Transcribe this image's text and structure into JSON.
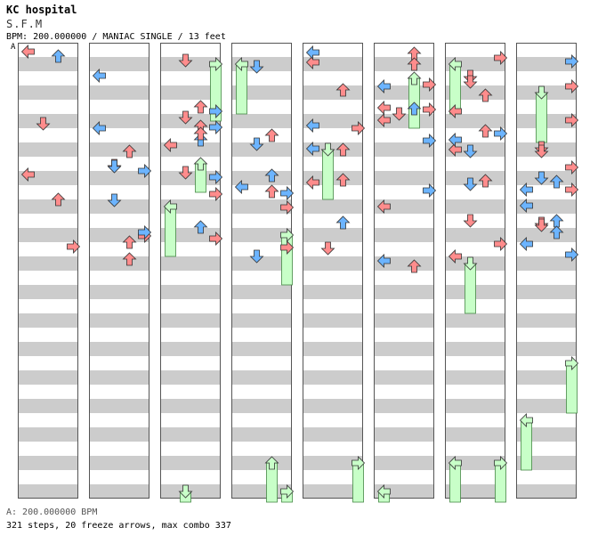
{
  "song": {
    "title": "KC hospital",
    "artist": "S.F.M",
    "info": "BPM: 200.000000 / MANIAC SINGLE / 13 feet",
    "bpm_marker": "A"
  },
  "footer": {
    "bpm_line": "A: 200.000000 BPM",
    "stats": "321 steps, 20 freeze arrows, max combo 337"
  },
  "colors": {
    "quarter_note": "#ff8c8c",
    "eighth_note": "#6cb4ff",
    "sixteenth_note": "#ff9cff",
    "freeze": "#c8ffc8",
    "stripe": "#cccccc"
  },
  "chart": {
    "columns": 8,
    "measures_per_column": 8,
    "lanes": [
      "left",
      "down",
      "up",
      "right"
    ],
    "notes": [
      [
        1,
        2,
        3,
        "8"
      ],
      [
        3,
        2,
        2,
        "8"
      ],
      [
        3,
        2,
        0,
        "8"
      ],
      [
        2,
        1,
        3,
        "8"
      ],
      [
        2,
        1,
        2,
        "4"
      ],
      [
        1,
        2,
        1,
        "8"
      ],
      [
        5,
        1,
        3,
        "8"
      ],
      [
        5,
        1,
        0,
        "4"
      ],
      [
        5,
        0,
        2,
        "4"
      ],
      [
        6,
        0,
        3,
        "4"
      ],
      [
        6,
        0,
        1,
        "4"
      ],
      [
        6,
        0,
        2,
        "4"
      ],
      [
        7,
        2,
        1,
        "8"
      ],
      [
        7,
        2,
        0,
        "8"
      ],
      [
        7,
        3,
        0,
        "8"
      ],
      [
        7,
        3,
        1,
        "4"
      ],
      [
        7,
        3,
        2,
        "8"
      ],
      [
        7,
        2,
        3,
        "4"
      ],
      [
        0,
        0,
        0,
        "4"
      ],
      [
        0,
        0,
        2,
        "8"
      ],
      [
        0,
        2,
        0,
        "4"
      ],
      [
        1,
        3,
        3,
        "4"
      ],
      [
        1,
        2,
        1,
        "4"
      ],
      [
        1,
        3,
        2,
        "4"
      ],
      [
        1,
        1,
        0,
        "8"
      ],
      [
        1,
        0,
        0,
        "8"
      ],
      [
        2,
        1,
        2,
        "4"
      ],
      [
        2,
        1,
        0,
        "4"
      ],
      [
        2,
        1,
        1,
        "4"
      ],
      [
        2,
        1,
        2,
        "8"
      ],
      [
        2,
        2,
        1,
        "4"
      ],
      [
        2,
        2,
        3,
        "8"
      ],
      [
        2,
        3,
        3,
        "4"
      ],
      [
        3,
        2,
        3,
        "8"
      ],
      [
        3,
        3,
        3,
        "4"
      ],
      [
        3,
        2,
        2,
        "4"
      ],
      [
        3,
        3,
        1,
        "8"
      ],
      [
        4,
        0,
        2,
        "4"
      ],
      [
        4,
        0,
        0,
        "4"
      ],
      [
        4,
        1,
        0,
        "8"
      ],
      [
        4,
        1,
        3,
        "4"
      ],
      [
        4,
        1,
        0,
        "8"
      ],
      [
        4,
        2,
        2,
        "4"
      ],
      [
        5,
        0,
        3,
        "4"
      ],
      [
        5,
        1,
        1,
        "4"
      ],
      [
        5,
        0,
        0,
        "8"
      ],
      [
        5,
        1,
        2,
        "8"
      ],
      [
        5,
        1,
        3,
        "4"
      ],
      [
        5,
        2,
        0,
        "4"
      ],
      [
        5,
        3,
        0,
        "8"
      ],
      [
        6,
        1,
        1,
        "8"
      ],
      [
        6,
        1,
        2,
        "4"
      ],
      [
        6,
        1,
        0,
        "4"
      ],
      [
        6,
        1,
        0,
        "8"
      ],
      [
        6,
        3,
        3,
        "4"
      ],
      [
        6,
        2,
        1,
        "8"
      ],
      [
        6,
        3,
        1,
        "4"
      ],
      [
        7,
        0,
        3,
        "4"
      ],
      [
        7,
        1,
        1,
        "4"
      ],
      [
        7,
        1,
        3,
        "4"
      ],
      [
        7,
        2,
        2,
        "8"
      ],
      [
        7,
        3,
        1,
        "4"
      ],
      [
        7,
        3,
        3,
        "8"
      ],
      [
        0,
        1,
        1,
        "4"
      ],
      [
        0,
        2,
        2,
        "4"
      ],
      [
        0,
        3,
        3,
        "4"
      ],
      [
        1,
        1,
        2,
        "4"
      ],
      [
        1,
        2,
        1,
        "8"
      ],
      [
        1,
        3,
        2,
        "4"
      ],
      [
        1,
        3,
        3,
        "8"
      ],
      [
        2,
        2,
        3,
        "4"
      ],
      [
        2,
        3,
        2,
        "8"
      ],
      [
        2,
        0,
        1,
        "4"
      ],
      [
        2,
        1,
        3,
        "8"
      ],
      [
        2,
        1,
        2,
        "4"
      ],
      [
        3,
        0,
        1,
        "8"
      ],
      [
        3,
        1,
        2,
        "4"
      ],
      [
        3,
        2,
        3,
        "4"
      ],
      [
        3,
        1,
        1,
        "8"
      ],
      [
        4,
        0,
        0,
        "8"
      ],
      [
        4,
        1,
        2,
        "4"
      ],
      [
        4,
        2,
        0,
        "4"
      ],
      [
        4,
        3,
        2,
        "8"
      ],
      [
        4,
        3,
        1,
        "4"
      ],
      [
        5,
        0,
        2,
        "4"
      ],
      [
        5,
        1,
        0,
        "4"
      ],
      [
        5,
        2,
        3,
        "8"
      ],
      [
        5,
        3,
        2,
        "4"
      ],
      [
        6,
        0,
        1,
        "4"
      ],
      [
        6,
        1,
        0,
        "4"
      ],
      [
        6,
        1,
        3,
        "8"
      ],
      [
        6,
        2,
        2,
        "4"
      ],
      [
        6,
        3,
        0,
        "4"
      ],
      [
        7,
        0,
        3,
        "8"
      ],
      [
        7,
        1,
        1,
        "4"
      ],
      [
        7,
        2,
        0,
        "8"
      ],
      [
        7,
        2,
        3,
        "4"
      ],
      [
        7,
        3,
        2,
        "8"
      ]
    ],
    "freezes": [
      [
        2,
        0,
        3,
        0,
        1,
        1,
        4
      ],
      [
        2,
        2,
        0,
        0,
        3,
        1,
        3
      ],
      [
        2,
        2,
        2,
        0,
        0,
        1,
        0
      ],
      [
        3,
        0,
        0,
        0,
        1,
        1,
        3
      ],
      [
        3,
        3,
        3,
        0,
        1,
        1,
        3
      ],
      [
        3,
        7,
        2,
        0,
        1,
        1,
        3
      ],
      [
        4,
        1,
        1,
        0,
        3,
        1,
        3
      ],
      [
        4,
        7,
        3,
        0,
        1,
        1,
        3
      ],
      [
        5,
        0,
        2,
        0,
        2,
        1,
        3
      ],
      [
        5,
        7,
        0,
        0,
        3,
        1,
        3
      ],
      [
        6,
        0,
        0,
        0,
        1,
        1,
        3
      ],
      [
        6,
        3,
        1,
        0,
        3,
        1,
        3
      ],
      [
        6,
        7,
        3,
        0,
        1,
        1,
        3
      ],
      [
        6,
        7,
        0,
        0,
        1,
        1,
        3
      ],
      [
        7,
        0,
        1,
        0,
        3,
        1,
        3
      ],
      [
        7,
        5,
        3,
        0,
        2,
        1,
        3
      ],
      [
        7,
        6,
        0,
        0,
        2,
        1,
        3
      ],
      [
        2,
        7,
        1,
        0,
        3,
        1,
        3
      ],
      [
        3,
        7,
        3,
        0,
        3,
        1,
        3
      ],
      [
        0,
        0,
        0,
        0,
        0,
        0,
        0
      ]
    ]
  }
}
